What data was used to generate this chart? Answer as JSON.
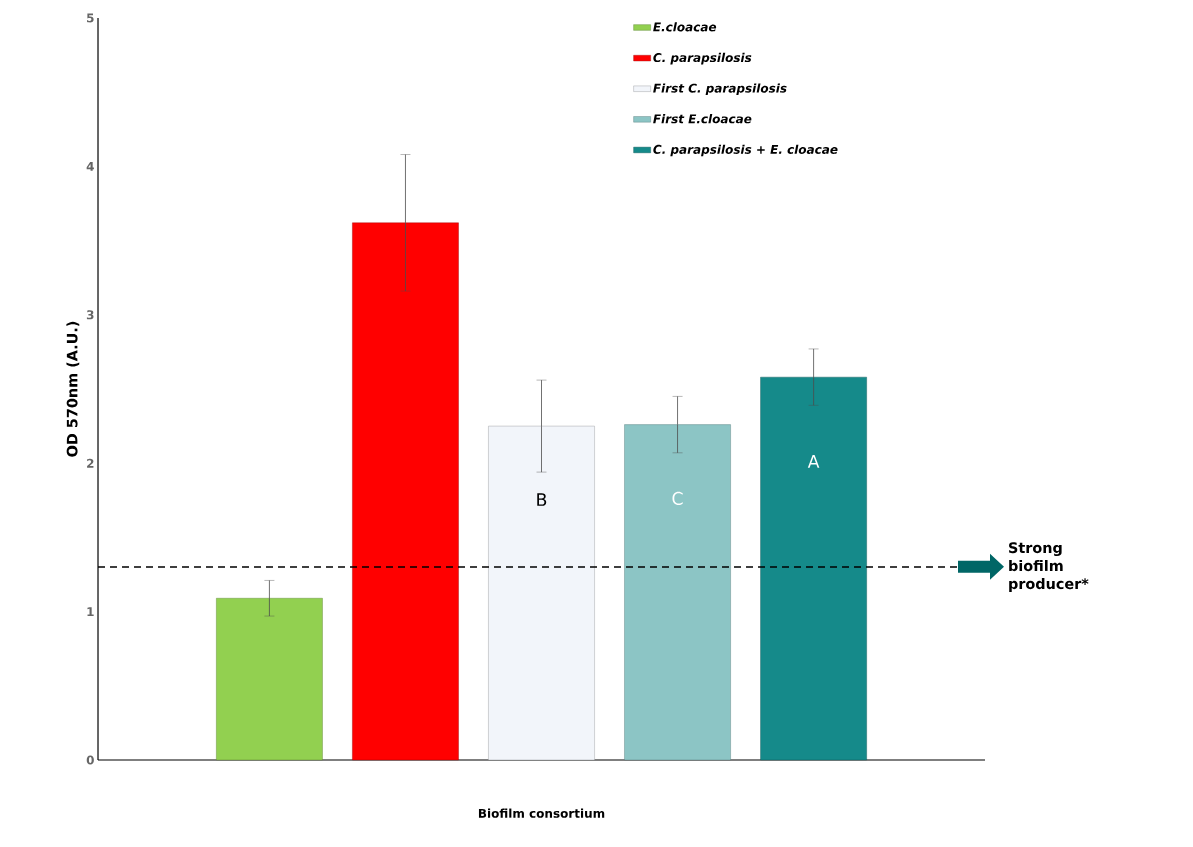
{
  "chart_data": {
    "type": "bar",
    "xlabel": "Biofilm consortium",
    "ylabel": "OD 570nm (A.U.)",
    "categories": [
      null,
      null,
      null,
      null,
      null
    ],
    "series": [
      {
        "name": "E.cloacae",
        "color": "#92d050",
        "values": [
          1.09,
          null,
          null,
          null,
          null
        ],
        "errors": [
          0.12,
          null,
          null,
          null,
          null
        ]
      },
      {
        "name": "C. parapsilosis",
        "color": "#ff0000",
        "values": [
          null,
          3.62,
          null,
          null,
          null
        ],
        "errors": [
          null,
          0.46,
          null,
          null,
          null
        ]
      },
      {
        "name": "First C. parapsilosis",
        "color": "#f2f5fa",
        "values": [
          null,
          null,
          2.25,
          null,
          null
        ],
        "errors": [
          null,
          null,
          0.31,
          null,
          null
        ],
        "value_labels": [
          null,
          null,
          "B",
          null,
          null
        ]
      },
      {
        "name": "First E.cloacae",
        "color": "#8cc5c5",
        "values": [
          null,
          null,
          null,
          2.26,
          null
        ],
        "errors": [
          null,
          null,
          null,
          0.19,
          null
        ],
        "value_labels": [
          null,
          null,
          null,
          "C",
          null
        ]
      },
      {
        "name": "C. parapsilosis + E. cloacae",
        "color": "#158a8a",
        "values": [
          null,
          null,
          null,
          null,
          2.58
        ],
        "errors": [
          null,
          null,
          null,
          null,
          0.19
        ],
        "value_labels": [
          null,
          null,
          null,
          null,
          "A"
        ]
      }
    ],
    "ylim": [
      0,
      5
    ],
    "yticks": [
      0,
      1,
      2,
      3,
      4,
      5
    ],
    "grid": false,
    "legend": "top right",
    "ref_lines": [
      {
        "axis": "y",
        "value": 1.3,
        "label": "Strong biofilm producer*",
        "line_style": "dashed",
        "color": "#000000"
      }
    ]
  }
}
